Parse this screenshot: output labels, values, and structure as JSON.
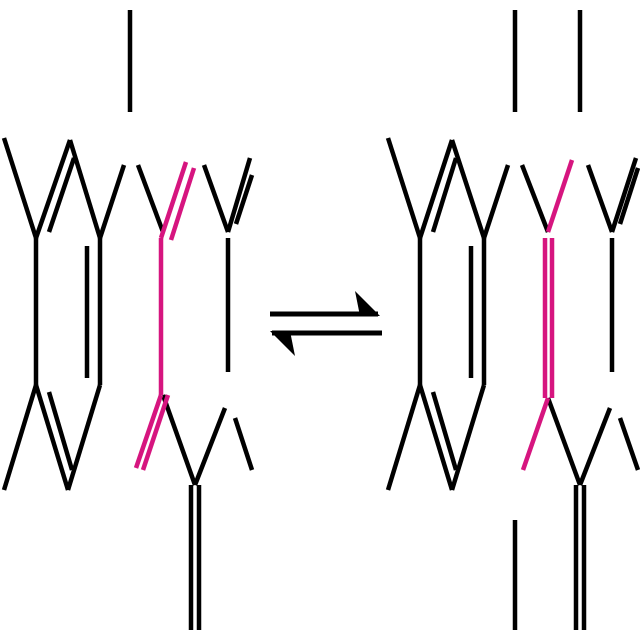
{
  "diagram": {
    "bond_color": "#000000",
    "highlight_color": "#d6157f",
    "background": "#ffffff",
    "arrow": "equilibrium-arrows"
  }
}
